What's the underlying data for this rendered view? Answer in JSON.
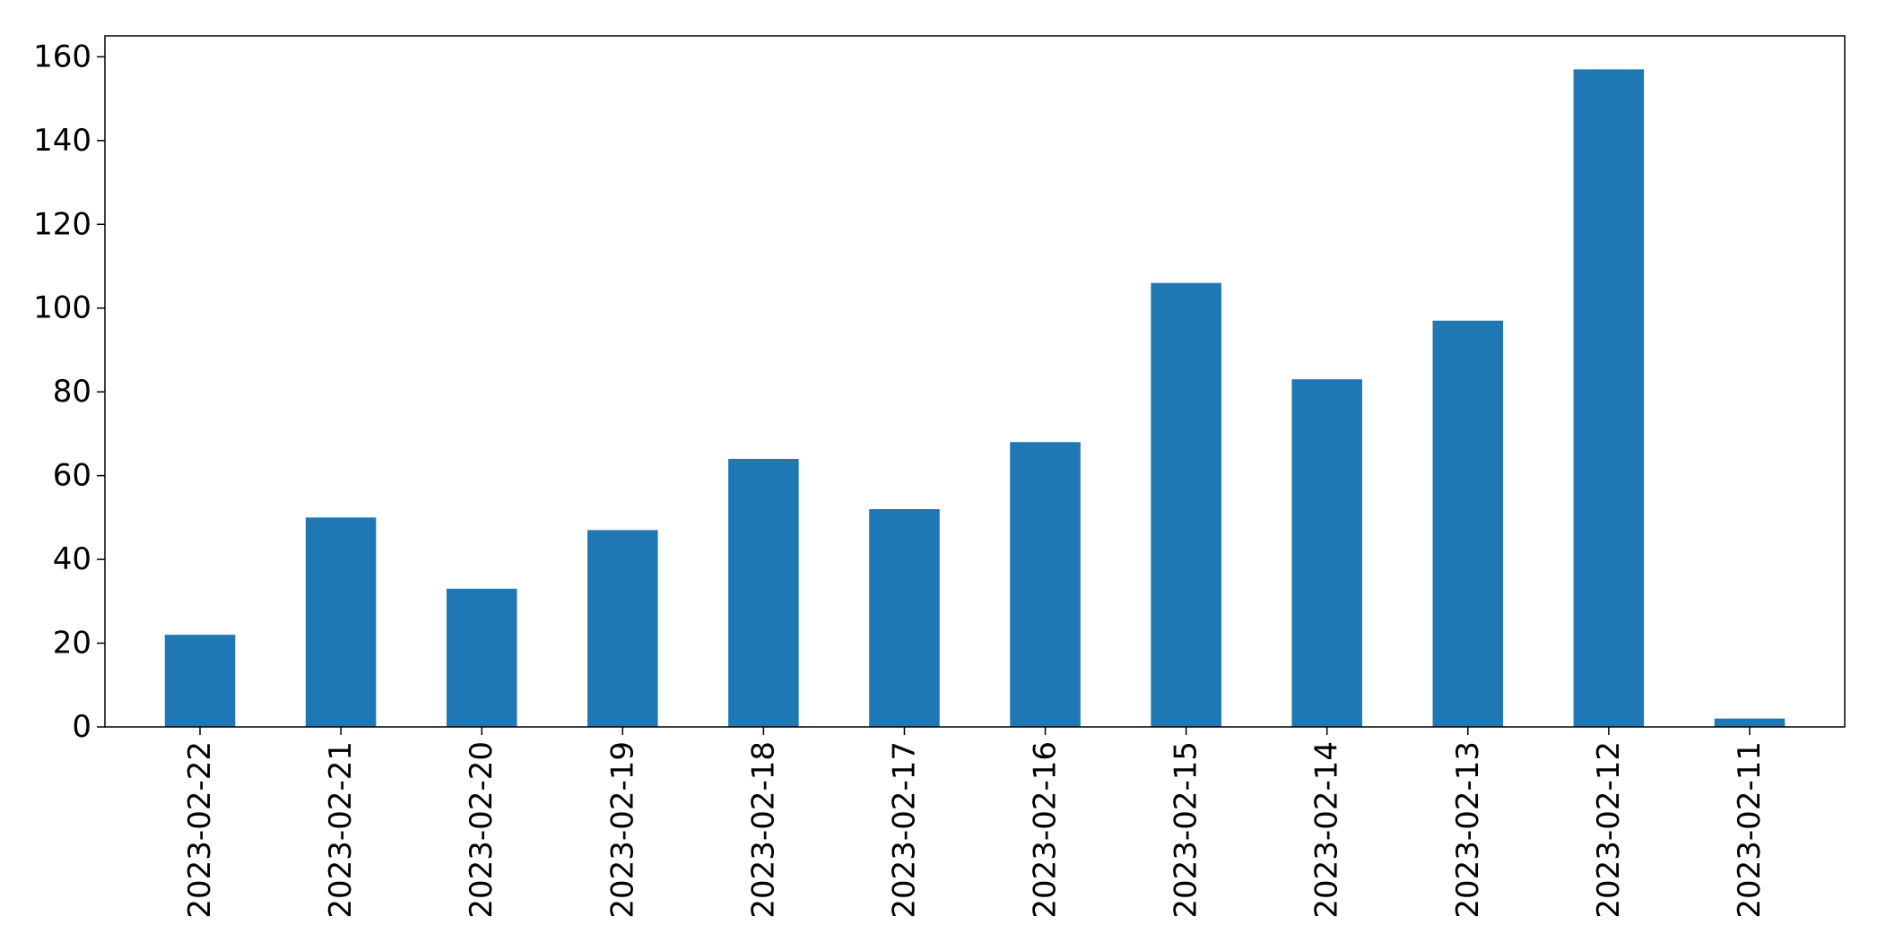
{
  "chart_data": {
    "type": "bar",
    "categories": [
      "2023-02-22",
      "2023-02-21",
      "2023-02-20",
      "2023-02-19",
      "2023-02-18",
      "2023-02-17",
      "2023-02-16",
      "2023-02-15",
      "2023-02-14",
      "2023-02-13",
      "2023-02-12",
      "2023-02-11"
    ],
    "values": [
      22,
      50,
      33,
      47,
      64,
      52,
      68,
      106,
      83,
      97,
      157,
      2
    ],
    "ylim": [
      0,
      165
    ],
    "yticks": [
      0,
      20,
      40,
      60,
      80,
      100,
      120,
      140,
      160
    ],
    "bar_color": "#1f77b4",
    "grid": false,
    "legend": "none",
    "title": "",
    "xlabel": "",
    "ylabel": ""
  }
}
